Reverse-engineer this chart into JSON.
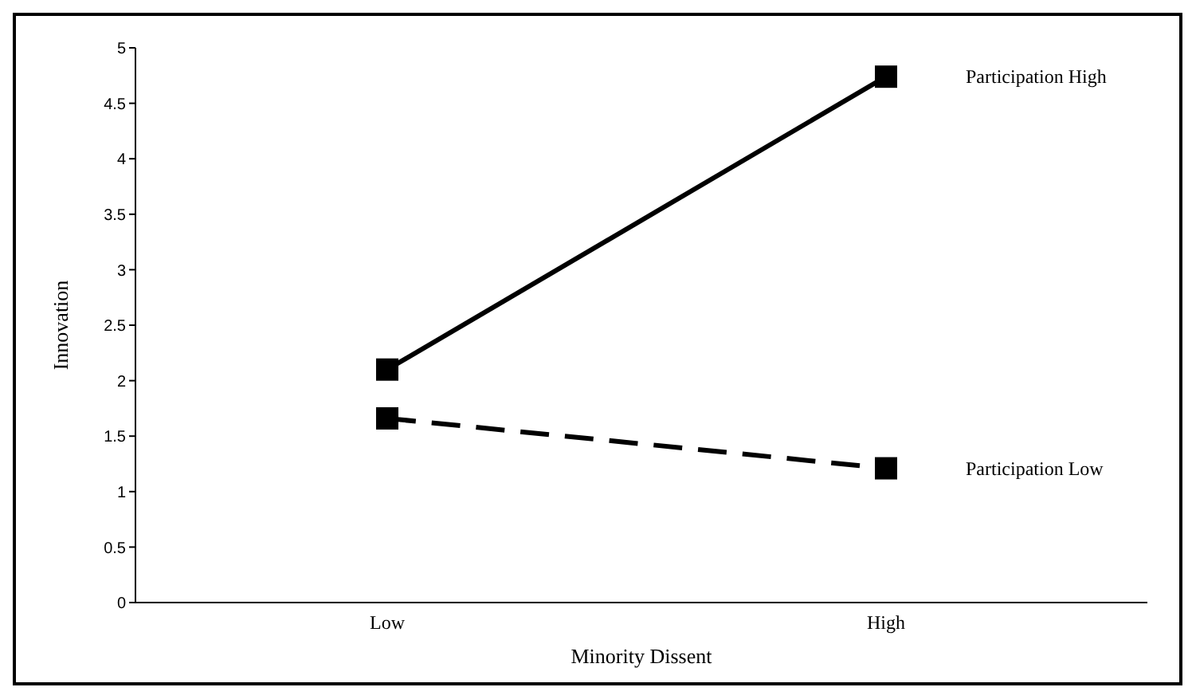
{
  "chart_data": {
    "type": "line",
    "xlabel": "Minority Dissent",
    "ylabel": "Innovation",
    "categories": [
      "Low",
      "High"
    ],
    "ylim": [
      0,
      5
    ],
    "yticks": [
      0,
      0.5,
      1,
      1.5,
      2,
      2.5,
      3,
      3.5,
      4,
      4.5,
      5
    ],
    "grid": false,
    "legend": false,
    "marker": "square",
    "series": [
      {
        "name": "Participation High",
        "color": "#000000",
        "line_style": "solid",
        "values": [
          2.1,
          4.74
        ]
      },
      {
        "name": "Participation Low",
        "color": "#000000",
        "line_style": "dashed",
        "values": [
          1.66,
          1.21
        ]
      }
    ]
  }
}
